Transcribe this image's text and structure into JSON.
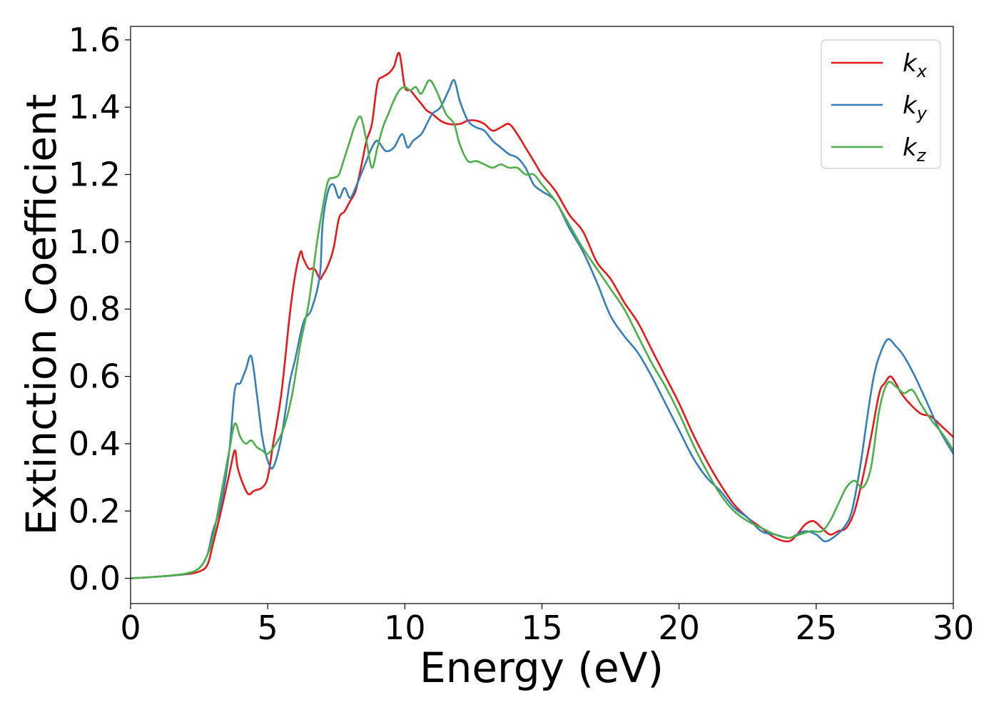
{
  "chart_data": {
    "type": "line",
    "title": "",
    "xlabel": "Energy (eV)",
    "ylabel": "Extinction Coefficient",
    "xlim": [
      0,
      30
    ],
    "ylim": [
      -0.075,
      1.64
    ],
    "xticks": [
      0,
      5,
      10,
      15,
      20,
      25,
      30
    ],
    "xtick_labels": [
      "0",
      "5",
      "10",
      "15",
      "20",
      "25",
      "30"
    ],
    "yticks": [
      0.0,
      0.2,
      0.4,
      0.6,
      0.8,
      1.0,
      1.2,
      1.4,
      1.6
    ],
    "ytick_labels": [
      "0.0",
      "0.2",
      "0.4",
      "0.6",
      "0.8",
      "1.0",
      "1.2",
      "1.4",
      "1.6"
    ],
    "grid": false,
    "legend_position": "top-right",
    "series": [
      {
        "name": "k_x",
        "label_base": "k",
        "label_sub": "x",
        "color": "#e41a1c",
        "x": [
          0,
          1,
          2,
          2.5,
          2.8,
          3.0,
          3.3,
          3.6,
          3.8,
          3.9,
          4.1,
          4.3,
          4.5,
          4.8,
          5.0,
          5.2,
          5.5,
          5.8,
          6.0,
          6.2,
          6.3,
          6.5,
          6.7,
          6.9,
          7.0,
          7.2,
          7.4,
          7.6,
          7.8,
          8.0,
          8.2,
          8.4,
          8.6,
          8.8,
          9.0,
          9.2,
          9.4,
          9.6,
          9.8,
          10.0,
          10.2,
          10.4,
          10.6,
          10.8,
          11.0,
          11.3,
          11.6,
          12.0,
          12.3,
          12.6,
          12.9,
          13.2,
          13.5,
          13.8,
          14.1,
          14.4,
          14.7,
          15.0,
          15.5,
          16.0,
          16.5,
          17.0,
          17.5,
          18.0,
          18.5,
          19.0,
          19.5,
          20.0,
          20.5,
          21.0,
          21.5,
          22.0,
          22.5,
          23.0,
          23.5,
          24.0,
          24.3,
          24.6,
          24.9,
          25.2,
          25.5,
          25.8,
          26.1,
          26.4,
          26.7,
          27.0,
          27.3,
          27.5,
          27.7,
          27.9,
          28.1,
          28.4,
          28.8,
          29.2,
          29.6,
          30.0
        ],
        "y": [
          0,
          0.005,
          0.012,
          0.02,
          0.04,
          0.1,
          0.2,
          0.31,
          0.38,
          0.33,
          0.28,
          0.25,
          0.26,
          0.27,
          0.3,
          0.4,
          0.55,
          0.78,
          0.9,
          0.97,
          0.95,
          0.92,
          0.92,
          0.89,
          0.9,
          0.93,
          0.98,
          1.07,
          1.09,
          1.12,
          1.15,
          1.22,
          1.3,
          1.35,
          1.47,
          1.49,
          1.5,
          1.52,
          1.56,
          1.46,
          1.45,
          1.43,
          1.41,
          1.39,
          1.38,
          1.36,
          1.35,
          1.35,
          1.36,
          1.36,
          1.35,
          1.33,
          1.34,
          1.35,
          1.32,
          1.28,
          1.24,
          1.2,
          1.15,
          1.08,
          1.03,
          0.94,
          0.89,
          0.82,
          0.76,
          0.68,
          0.6,
          0.52,
          0.43,
          0.35,
          0.28,
          0.22,
          0.18,
          0.15,
          0.12,
          0.11,
          0.13,
          0.16,
          0.17,
          0.15,
          0.13,
          0.14,
          0.15,
          0.2,
          0.3,
          0.42,
          0.55,
          0.58,
          0.6,
          0.58,
          0.55,
          0.52,
          0.49,
          0.48,
          0.45,
          0.42
        ]
      },
      {
        "name": "k_y",
        "label_base": "k",
        "label_sub": "y",
        "color": "#377eb8",
        "x": [
          0,
          1,
          2,
          2.5,
          2.8,
          3.0,
          3.3,
          3.6,
          3.8,
          4.0,
          4.2,
          4.4,
          4.6,
          4.8,
          5.0,
          5.2,
          5.5,
          5.8,
          6.0,
          6.3,
          6.6,
          6.9,
          7.0,
          7.2,
          7.4,
          7.6,
          7.8,
          8.0,
          8.2,
          8.4,
          8.6,
          8.8,
          9.0,
          9.3,
          9.6,
          9.9,
          10.1,
          10.3,
          10.6,
          10.8,
          11.0,
          11.3,
          11.6,
          11.8,
          12.0,
          12.3,
          12.6,
          12.9,
          13.2,
          13.5,
          13.8,
          14.1,
          14.4,
          14.7,
          15.0,
          15.5,
          16.0,
          16.5,
          17.0,
          17.5,
          18.0,
          18.5,
          19.0,
          19.5,
          20.0,
          20.5,
          21.0,
          21.5,
          22.0,
          22.5,
          23.0,
          23.5,
          24.0,
          24.3,
          24.6,
          25.0,
          25.3,
          25.6,
          26.0,
          26.3,
          26.6,
          26.9,
          27.1,
          27.3,
          27.6,
          27.9,
          28.2,
          28.6,
          29.0,
          29.5,
          30.0
        ],
        "y": [
          0,
          0.005,
          0.013,
          0.03,
          0.07,
          0.14,
          0.22,
          0.38,
          0.56,
          0.58,
          0.62,
          0.66,
          0.55,
          0.42,
          0.35,
          0.33,
          0.42,
          0.58,
          0.65,
          0.76,
          0.8,
          0.9,
          1.05,
          1.15,
          1.17,
          1.13,
          1.16,
          1.13,
          1.16,
          1.2,
          1.24,
          1.28,
          1.3,
          1.27,
          1.28,
          1.32,
          1.28,
          1.3,
          1.32,
          1.35,
          1.38,
          1.4,
          1.45,
          1.48,
          1.42,
          1.36,
          1.34,
          1.33,
          1.3,
          1.28,
          1.26,
          1.25,
          1.22,
          1.17,
          1.15,
          1.12,
          1.04,
          0.97,
          0.88,
          0.78,
          0.72,
          0.67,
          0.6,
          0.52,
          0.44,
          0.36,
          0.3,
          0.26,
          0.21,
          0.18,
          0.14,
          0.13,
          0.12,
          0.13,
          0.14,
          0.13,
          0.11,
          0.12,
          0.15,
          0.2,
          0.33,
          0.5,
          0.6,
          0.66,
          0.71,
          0.69,
          0.66,
          0.6,
          0.53,
          0.44,
          0.37
        ]
      },
      {
        "name": "k_z",
        "label_base": "k",
        "label_sub": "z",
        "color": "#4daf4a",
        "x": [
          0,
          1,
          2,
          2.5,
          2.8,
          3.0,
          3.3,
          3.6,
          3.8,
          4.0,
          4.2,
          4.4,
          4.6,
          4.8,
          5.0,
          5.3,
          5.6,
          5.9,
          6.2,
          6.5,
          6.8,
          7.0,
          7.2,
          7.4,
          7.6,
          7.8,
          8.0,
          8.2,
          8.4,
          8.6,
          8.8,
          9.0,
          9.2,
          9.4,
          9.6,
          9.8,
          10.0,
          10.2,
          10.4,
          10.6,
          10.9,
          11.2,
          11.5,
          11.8,
          12.0,
          12.3,
          12.6,
          12.9,
          13.2,
          13.5,
          13.8,
          14.1,
          14.4,
          14.7,
          15.0,
          15.5,
          16.0,
          16.5,
          17.0,
          17.5,
          18.0,
          18.5,
          19.0,
          19.5,
          20.0,
          20.5,
          21.0,
          21.5,
          22.0,
          22.5,
          23.0,
          23.5,
          24.0,
          24.4,
          24.8,
          25.2,
          25.5,
          25.8,
          26.1,
          26.4,
          26.7,
          27.0,
          27.3,
          27.6,
          27.9,
          28.2,
          28.5,
          28.8,
          29.2,
          29.6,
          30.0
        ],
        "y": [
          0,
          0.005,
          0.014,
          0.03,
          0.07,
          0.12,
          0.25,
          0.38,
          0.46,
          0.42,
          0.4,
          0.41,
          0.39,
          0.38,
          0.37,
          0.4,
          0.45,
          0.55,
          0.7,
          0.82,
          1.0,
          1.1,
          1.18,
          1.19,
          1.2,
          1.25,
          1.3,
          1.35,
          1.37,
          1.3,
          1.22,
          1.28,
          1.34,
          1.38,
          1.42,
          1.45,
          1.46,
          1.45,
          1.46,
          1.44,
          1.48,
          1.44,
          1.38,
          1.35,
          1.29,
          1.24,
          1.24,
          1.23,
          1.22,
          1.23,
          1.22,
          1.22,
          1.2,
          1.2,
          1.17,
          1.12,
          1.05,
          0.98,
          0.92,
          0.86,
          0.8,
          0.72,
          0.64,
          0.57,
          0.49,
          0.4,
          0.32,
          0.25,
          0.2,
          0.17,
          0.15,
          0.13,
          0.12,
          0.13,
          0.14,
          0.14,
          0.17,
          0.22,
          0.27,
          0.29,
          0.27,
          0.33,
          0.5,
          0.58,
          0.57,
          0.55,
          0.56,
          0.52,
          0.47,
          0.43,
          0.38
        ]
      }
    ]
  }
}
